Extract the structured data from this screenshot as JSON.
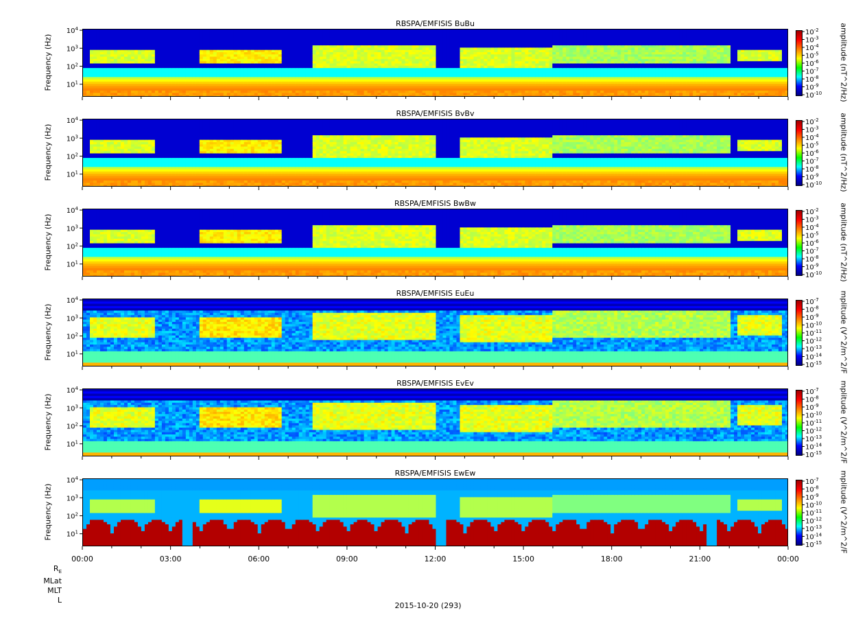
{
  "panels": [
    {
      "title": "RBSPA/EMFISIS  BuBu",
      "ylabel": "Frequency (Hz)",
      "cbar_label": "amplitude (nT^2/Hz)",
      "cbar_ticks": [
        "10^-2",
        "10^-3",
        "10^-4",
        "10^-5",
        "10^-6",
        "10^-7",
        "10^-8",
        "10^-9",
        "10^-10"
      ],
      "kind": "B"
    },
    {
      "title": "RBSPA/EMFISIS  BvBv",
      "ylabel": "Frequency (Hz)",
      "cbar_label": "amplitude (nT^2/Hz)",
      "cbar_ticks": [
        "10^-2",
        "10^-3",
        "10^-4",
        "10^-5",
        "10^-6",
        "10^-7",
        "10^-8",
        "10^-9",
        "10^-10"
      ],
      "kind": "B"
    },
    {
      "title": "RBSPA/EMFISIS  BwBw",
      "ylabel": "Frequency (Hz)",
      "cbar_label": "amplitude (nT^2/Hz)",
      "cbar_ticks": [
        "10^-2",
        "10^-3",
        "10^-4",
        "10^-5",
        "10^-6",
        "10^-7",
        "10^-8",
        "10^-9",
        "10^-10"
      ],
      "kind": "B"
    },
    {
      "title": "RBSPA/EMFISIS  EuEu",
      "ylabel": "Frequency (Hz)",
      "cbar_label": "mplitude (V^2/m^2/F",
      "cbar_ticks": [
        "10^-7",
        "10^-8",
        "10^-9",
        "10^-10",
        "10^-11",
        "10^-12",
        "10^-13",
        "10^-14",
        "10^-15"
      ],
      "kind": "E"
    },
    {
      "title": "RBSPA/EMFISIS  EvEv",
      "ylabel": "Frequency (Hz)",
      "cbar_label": "mplitude (V^2/m^2/F",
      "cbar_ticks": [
        "10^-7",
        "10^-8",
        "10^-9",
        "10^-10",
        "10^-11",
        "10^-12",
        "10^-13",
        "10^-14",
        "10^-15"
      ],
      "kind": "E"
    },
    {
      "title": "RBSPA/EMFISIS  EwEw",
      "ylabel": "Frequency (Hz)",
      "cbar_label": "mplitude (V^2/m^2/F",
      "cbar_ticks": [
        "10^-7",
        "10^-8",
        "10^-9",
        "10^-10",
        "10^-11",
        "10^-12",
        "10^-13",
        "10^-14",
        "10^-15"
      ],
      "kind": "Ew"
    }
  ],
  "x_tick_labels": [
    "00:00",
    "03:00",
    "06:00",
    "09:00",
    "12:00",
    "15:00",
    "18:00",
    "21:00",
    "00:00"
  ],
  "ephemeris_labels": [
    "RE",
    "MLat",
    "MLT",
    "L"
  ],
  "date_label": "2015-10-20 (293)",
  "chart_data": {
    "type": "heatmap",
    "title": "",
    "panels": [
      "RBSPA/EMFISIS  BuBu",
      "RBSPA/EMFISIS  BvBv",
      "RBSPA/EMFISIS  BwBw",
      "RBSPA/EMFISIS  EuEu",
      "RBSPA/EMFISIS  EvEv",
      "RBSPA/EMFISIS  EwEw"
    ],
    "xlabel": "2015-10-20 (293)",
    "ylabel": "Frequency (Hz)",
    "x_ticks": [
      "00:00",
      "03:00",
      "06:00",
      "09:00",
      "12:00",
      "15:00",
      "18:00",
      "21:00",
      "00:00"
    ],
    "x_range_hours": [
      0,
      24
    ],
    "y_scale": "log",
    "y_ticks": [
      10,
      100,
      1000,
      10000
    ],
    "y_tick_labels": [
      "10^1",
      "10^2",
      "10^3",
      "10^4"
    ],
    "y_range_hz": [
      2,
      12000
    ],
    "colormap": "jet",
    "colorbar_B_range": [
      "10^-10",
      "10^-2"
    ],
    "colorbar_E_range": [
      "10^-15",
      "10^-7"
    ]
  }
}
